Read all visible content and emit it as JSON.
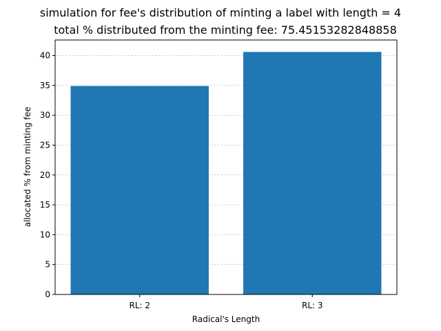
{
  "chart_data": {
    "type": "bar",
    "title": "simulation for fee's distribution of minting a label with length = 4",
    "subtitle": "total % distributed from the minting fee: 75.45153282848858",
    "xlabel": "Radical's Length",
    "ylabel": "allocated % from minting fee",
    "categories": [
      "RL: 2",
      "RL: 3"
    ],
    "values": [
      34.9,
      40.6
    ],
    "ylim": [
      0,
      42.6
    ],
    "yticks": [
      0,
      5,
      10,
      15,
      20,
      25,
      30,
      35,
      40
    ],
    "grid": "y-dashed",
    "legend": "none",
    "bar_color": "#1f77b4"
  }
}
